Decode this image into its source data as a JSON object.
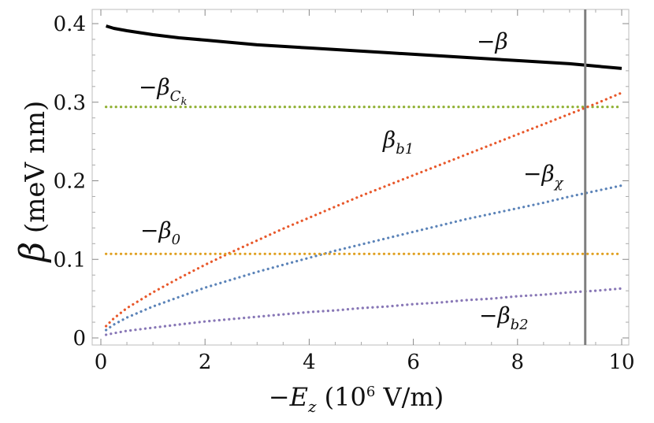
{
  "chart_data": {
    "type": "line",
    "xlabel": {
      "main": "−E",
      "sub": "z",
      "units": "(10",
      "exp": "6",
      "units_tail": " V/m)"
    },
    "ylabel": {
      "main": "β",
      "units": " (meV nm)"
    },
    "xlim": [
      0,
      10
    ],
    "ylim": [
      0,
      0.42
    ],
    "x_ticks": [
      "0",
      "2",
      "4",
      "6",
      "8",
      "10"
    ],
    "x_tick_values": [
      0,
      2,
      4,
      6,
      8,
      10
    ],
    "y_ticks": [
      "0",
      "0.1",
      "0.2",
      "0.3",
      "0.4"
    ],
    "y_tick_values": [
      0,
      0.1,
      0.2,
      0.3,
      0.4
    ],
    "grid": false,
    "vertical_line": {
      "x": 9.3,
      "color": "#7f7f7f"
    },
    "x": [
      0.1,
      0.25,
      0.5,
      1,
      1.5,
      2,
      2.5,
      3,
      3.5,
      4,
      4.5,
      5,
      5.5,
      6,
      6.5,
      7,
      7.5,
      8,
      8.5,
      9,
      9.5,
      10
    ],
    "series": [
      {
        "name": "−β",
        "label": {
          "main": "−β",
          "sub": ""
        },
        "style": "solid",
        "color": "#000000",
        "values": [
          0.397,
          0.394,
          0.391,
          0.386,
          0.382,
          0.379,
          0.376,
          0.373,
          0.371,
          0.369,
          0.367,
          0.365,
          0.363,
          0.361,
          0.359,
          0.357,
          0.355,
          0.353,
          0.351,
          0.349,
          0.346,
          0.343
        ]
      },
      {
        "name": "−βCk",
        "label": {
          "main": "−β",
          "sub": "C",
          "subsub": "k"
        },
        "style": "dotted",
        "color": "#8fb032",
        "values": [
          0.294,
          0.294,
          0.294,
          0.294,
          0.294,
          0.294,
          0.294,
          0.294,
          0.294,
          0.294,
          0.294,
          0.294,
          0.294,
          0.294,
          0.294,
          0.294,
          0.294,
          0.294,
          0.294,
          0.294,
          0.294,
          0.294
        ]
      },
      {
        "name": "βb1",
        "label": {
          "main": "β",
          "sub": "b1"
        },
        "style": "dotted",
        "color": "#e8582b",
        "values": [
          0.015,
          0.025,
          0.038,
          0.058,
          0.076,
          0.093,
          0.109,
          0.124,
          0.139,
          0.153,
          0.167,
          0.181,
          0.194,
          0.207,
          0.22,
          0.233,
          0.246,
          0.259,
          0.272,
          0.285,
          0.298,
          0.312
        ]
      },
      {
        "name": "−βχ",
        "label": {
          "main": "−β",
          "sub": "χ"
        },
        "style": "dotted",
        "color": "#5b83b8",
        "values": [
          0.01,
          0.017,
          0.026,
          0.04,
          0.052,
          0.064,
          0.074,
          0.084,
          0.093,
          0.102,
          0.111,
          0.119,
          0.127,
          0.135,
          0.143,
          0.151,
          0.158,
          0.165,
          0.172,
          0.18,
          0.187,
          0.194
        ]
      },
      {
        "name": "−β0",
        "label": {
          "main": "−β",
          "sub": "0"
        },
        "style": "dotted",
        "color": "#e0a020",
        "values": [
          0.107,
          0.107,
          0.107,
          0.107,
          0.107,
          0.107,
          0.107,
          0.107,
          0.107,
          0.107,
          0.107,
          0.107,
          0.107,
          0.107,
          0.107,
          0.107,
          0.107,
          0.107,
          0.107,
          0.107,
          0.107,
          0.107
        ]
      },
      {
        "name": "−βb2",
        "label": {
          "main": "−β",
          "sub": "b2"
        },
        "style": "dotted",
        "color": "#8877b6",
        "values": [
          0.004,
          0.006,
          0.009,
          0.013,
          0.017,
          0.021,
          0.024,
          0.027,
          0.03,
          0.033,
          0.035,
          0.038,
          0.04,
          0.043,
          0.045,
          0.048,
          0.05,
          0.053,
          0.055,
          0.058,
          0.06,
          0.063
        ]
      }
    ]
  }
}
